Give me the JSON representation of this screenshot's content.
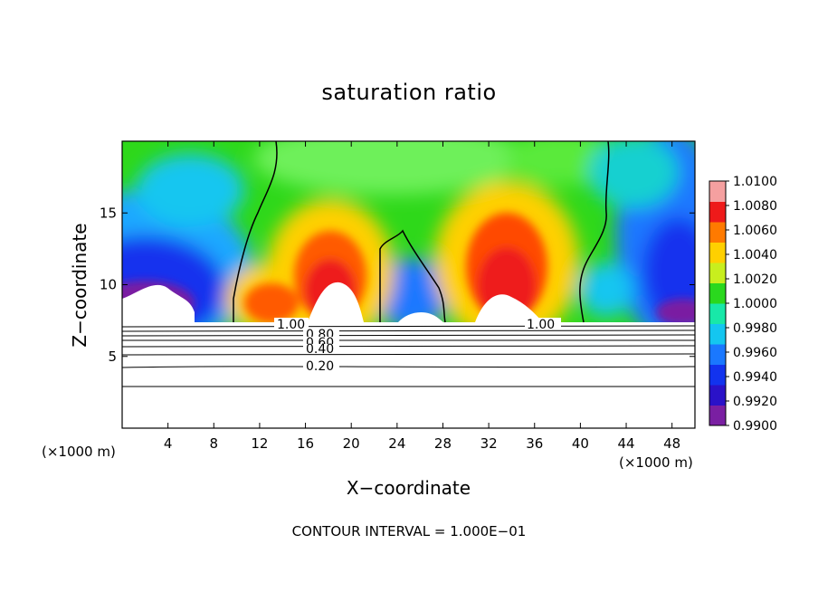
{
  "chart_data": {
    "type": "heatmap",
    "title": "saturation ratio",
    "xlabel": "X−coordinate",
    "ylabel": "Z−coordinate",
    "x_unit_label": "(×1000 m)",
    "footer": "CONTOUR INTERVAL = 1.000E−01",
    "xlim": [
      0,
      50
    ],
    "ylim": [
      0,
      20
    ],
    "x_ticks": [
      "4",
      "8",
      "12",
      "16",
      "20",
      "24",
      "28",
      "32",
      "36",
      "40",
      "44",
      "48"
    ],
    "y_ticks": [
      "5",
      "10",
      "15"
    ],
    "colorbar": {
      "levels": [
        "0.9900",
        "0.9920",
        "0.9940",
        "0.9960",
        "0.9980",
        "1.0000",
        "1.0020",
        "1.0040",
        "1.0060",
        "1.0080",
        "1.0100"
      ],
      "colors": [
        "#7a1fa2",
        "#2a12c8",
        "#1233ee",
        "#1a78ff",
        "#14c6f0",
        "#18e8a8",
        "#2ad81e",
        "#c8ee1e",
        "#ffd000",
        "#ff7a00",
        "#ee1a1a",
        "#f5a0a0"
      ]
    },
    "contour_labels": [
      "1.00",
      "0.80",
      "0.60",
      "0.40",
      "0.20",
      "1.00"
    ],
    "cloud_base_z": 7.5
  }
}
